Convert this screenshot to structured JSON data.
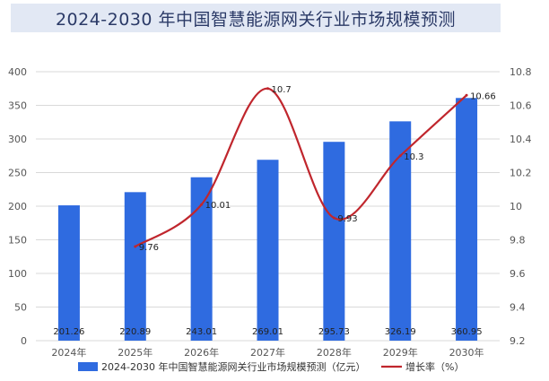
{
  "chart_data": {
    "type": "bar",
    "title": "2024-2030 年中国智慧能源网关行业市场规模预测",
    "categories": [
      "2024年",
      "2025年",
      "2026年",
      "2027年",
      "2028年",
      "2029年",
      "2030年"
    ],
    "series": [
      {
        "name": "2024-2030 年中国智慧能源网关行业市场规模预测（亿元）",
        "type": "bar",
        "axis": "left",
        "color": "#2f6be0",
        "values": [
          201.26,
          220.89,
          243.01,
          269.01,
          295.73,
          326.19,
          360.95
        ],
        "labels": [
          "201.26",
          "220.89",
          "243.01",
          "269.01",
          "295.73",
          "326.19",
          "360.95"
        ]
      },
      {
        "name": "增长率（%）",
        "type": "line",
        "axis": "right",
        "color": "#c0262d",
        "values": [
          null,
          9.76,
          10.01,
          10.7,
          9.93,
          10.3,
          10.66
        ],
        "labels": [
          "",
          "9.76",
          "10.01",
          "10.7",
          "9.93",
          "10.3",
          "10.66"
        ]
      }
    ],
    "ylim": [
      0,
      400
    ],
    "y_ticks": [
      "0",
      "50",
      "100",
      "150",
      "200",
      "250",
      "300",
      "350",
      "400"
    ],
    "y2lim": [
      9.2,
      10.8
    ],
    "y2_ticks": [
      "9.2",
      "9.4",
      "9.6",
      "9.8",
      "10",
      "10.2",
      "10.4",
      "10.6",
      "10.8"
    ],
    "grid": true,
    "legend": "bottom"
  }
}
